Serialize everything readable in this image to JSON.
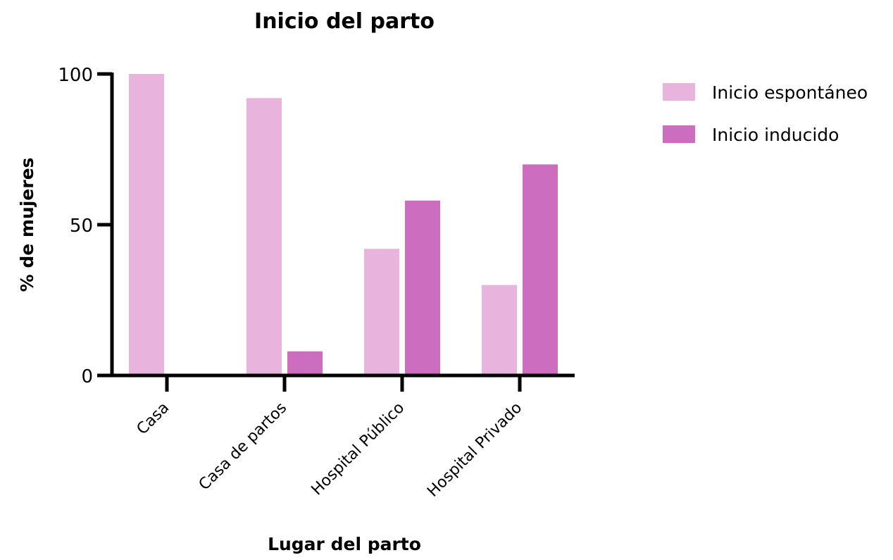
{
  "chart_data": {
    "type": "bar",
    "title": "Inicio del parto",
    "xlabel": "Lugar del parto",
    "ylabel": "% de mujeres",
    "categories": [
      "Casa",
      "Casa de partos",
      "Hospital Público",
      "Hospital Privado"
    ],
    "series": [
      {
        "name": "Inicio espontáneo",
        "color": "#e8b3dc",
        "values": [
          100,
          92,
          42,
          30
        ]
      },
      {
        "name": "Inicio inducido",
        "color": "#cd6dc0",
        "values": [
          0,
          8,
          58,
          70
        ]
      }
    ],
    "ylim": [
      0,
      100
    ],
    "yticks": [
      "0",
      "50",
      "100"
    ],
    "grid": false,
    "legend_position": "top-right"
  }
}
